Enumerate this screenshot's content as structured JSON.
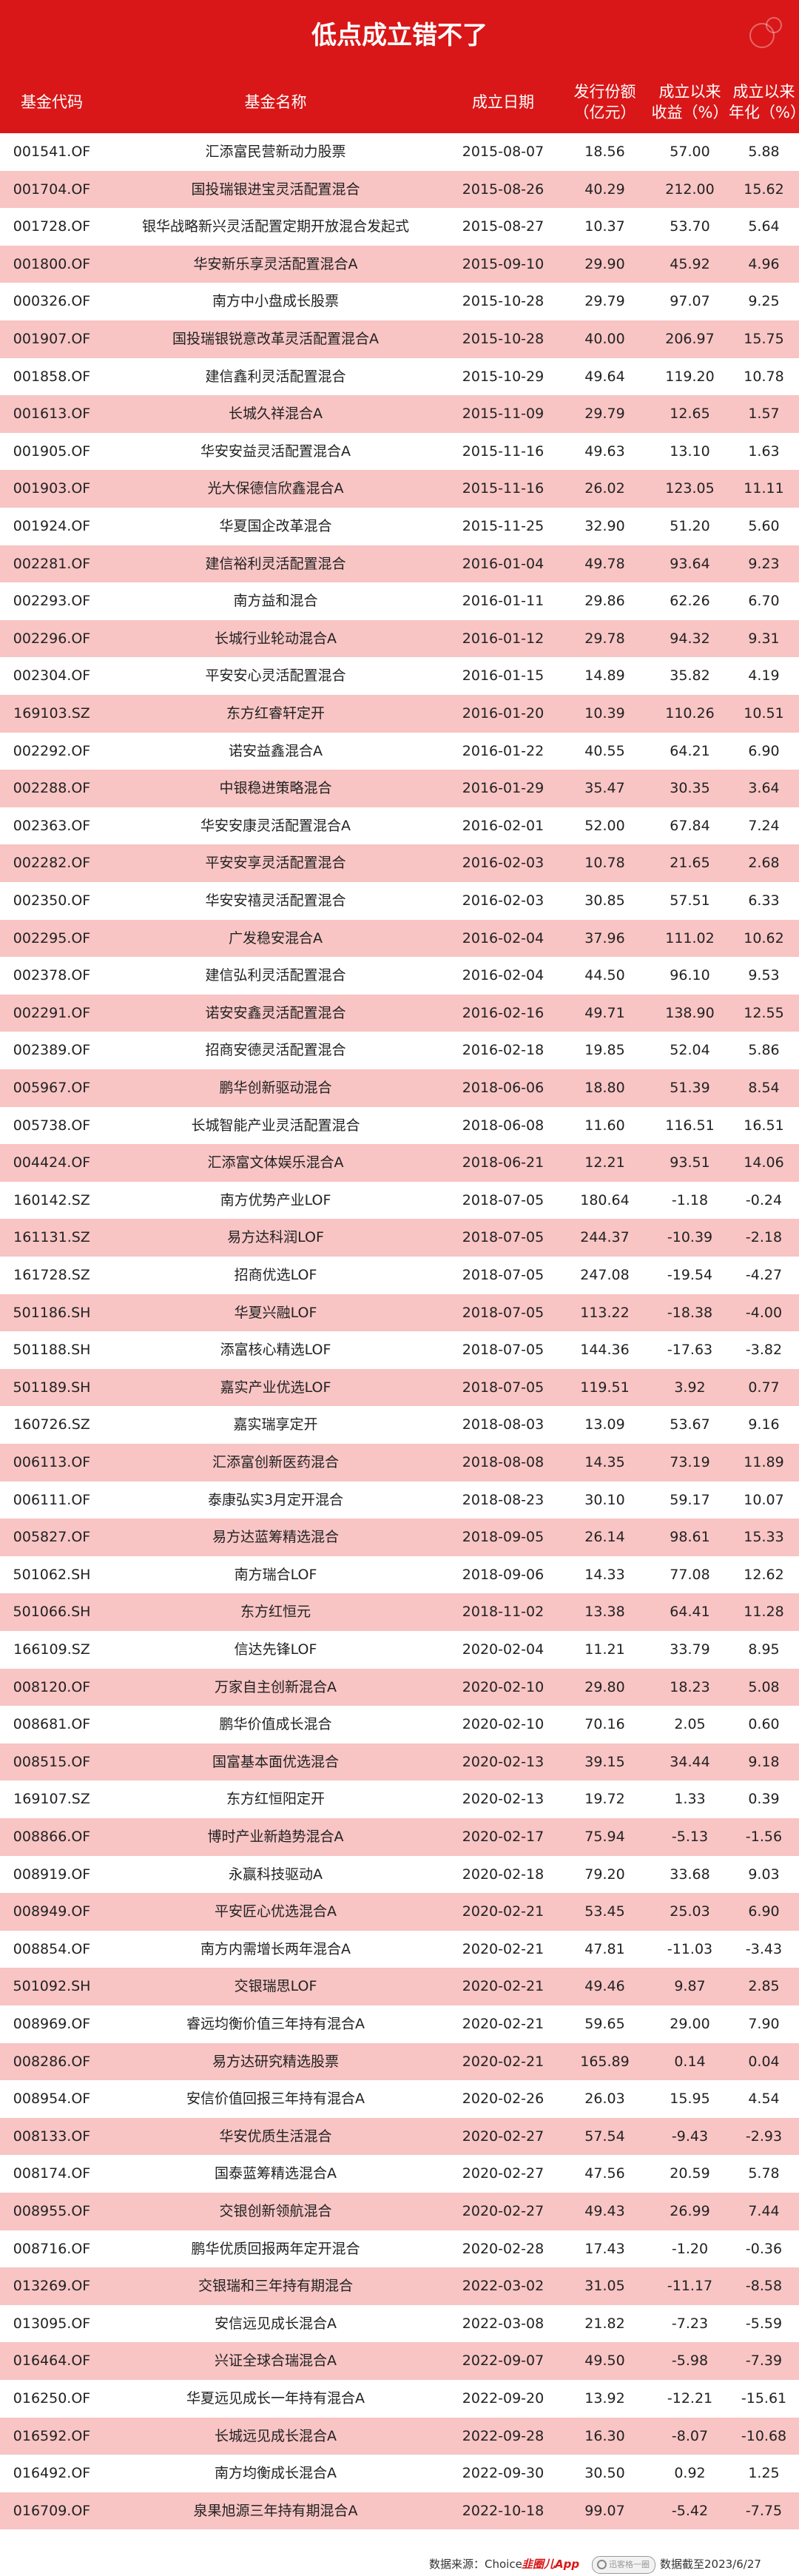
{
  "title": "低点成立错不了",
  "columns": [
    "基金代码",
    "基金名称",
    "成立日期",
    "发行份额\n（亿元）",
    "成立以来\n收益（%）",
    "成立以来\n年化（%）"
  ],
  "rows": [
    [
      "001541.OF",
      "汇添富民营新动力股票",
      "2015-08-07",
      "18.56",
      "57.00",
      "5.88"
    ],
    [
      "001704.OF",
      "国投瑞银进宝灵活配置混合",
      "2015-08-26",
      "40.29",
      "212.00",
      "15.62"
    ],
    [
      "001728.OF",
      "银华战略新兴灵活配置定期开放混合发起式",
      "2015-08-27",
      "10.37",
      "53.70",
      "5.64"
    ],
    [
      "001800.OF",
      "华安新乐享灵活配置混合A",
      "2015-09-10",
      "29.90",
      "45.92",
      "4.96"
    ],
    [
      "000326.OF",
      "南方中小盘成长股票",
      "2015-10-28",
      "29.79",
      "97.07",
      "9.25"
    ],
    [
      "001907.OF",
      "国投瑞银锐意改革灵活配置混合A",
      "2015-10-28",
      "40.00",
      "206.97",
      "15.75"
    ],
    [
      "001858.OF",
      "建信鑫利灵活配置混合",
      "2015-10-29",
      "49.64",
      "119.20",
      "10.78"
    ],
    [
      "001613.OF",
      "长城久祥混合A",
      "2015-11-09",
      "29.79",
      "12.65",
      "1.57"
    ],
    [
      "001905.OF",
      "华安安益灵活配置混合A",
      "2015-11-16",
      "49.63",
      "13.10",
      "1.63"
    ],
    [
      "001903.OF",
      "光大保德信欣鑫混合A",
      "2015-11-16",
      "26.02",
      "123.05",
      "11.11"
    ],
    [
      "001924.OF",
      "华夏国企改革混合",
      "2015-11-25",
      "32.90",
      "51.20",
      "5.60"
    ],
    [
      "002281.OF",
      "建信裕利灵活配置混合",
      "2016-01-04",
      "49.78",
      "93.64",
      "9.23"
    ],
    [
      "002293.OF",
      "南方益和混合",
      "2016-01-11",
      "29.86",
      "62.26",
      "6.70"
    ],
    [
      "002296.OF",
      "长城行业轮动混合A",
      "2016-01-12",
      "29.78",
      "94.32",
      "9.31"
    ],
    [
      "002304.OF",
      "平安安心灵活配置混合",
      "2016-01-15",
      "14.89",
      "35.82",
      "4.19"
    ],
    [
      "169103.SZ",
      "东方红睿轩定开",
      "2016-01-20",
      "10.39",
      "110.26",
      "10.51"
    ],
    [
      "002292.OF",
      "诺安益鑫混合A",
      "2016-01-22",
      "40.55",
      "64.21",
      "6.90"
    ],
    [
      "002288.OF",
      "中银稳进策略混合",
      "2016-01-29",
      "35.47",
      "30.35",
      "3.64"
    ],
    [
      "002363.OF",
      "华安安康灵活配置混合A",
      "2016-02-01",
      "52.00",
      "67.84",
      "7.24"
    ],
    [
      "002282.OF",
      "平安安享灵活配置混合",
      "2016-02-03",
      "10.78",
      "21.65",
      "2.68"
    ],
    [
      "002350.OF",
      "华安安禧灵活配置混合",
      "2016-02-03",
      "30.85",
      "57.51",
      "6.33"
    ],
    [
      "002295.OF",
      "广发稳安混合A",
      "2016-02-04",
      "37.96",
      "111.02",
      "10.62"
    ],
    [
      "002378.OF",
      "建信弘利灵活配置混合",
      "2016-02-04",
      "44.50",
      "96.10",
      "9.53"
    ],
    [
      "002291.OF",
      "诺安安鑫灵活配置混合",
      "2016-02-16",
      "49.71",
      "138.90",
      "12.55"
    ],
    [
      "002389.OF",
      "招商安德灵活配置混合",
      "2016-02-18",
      "19.85",
      "52.04",
      "5.86"
    ],
    [
      "005967.OF",
      "鹏华创新驱动混合",
      "2018-06-06",
      "18.80",
      "51.39",
      "8.54"
    ],
    [
      "005738.OF",
      "长城智能产业灵活配置混合",
      "2018-06-08",
      "11.60",
      "116.51",
      "16.51"
    ],
    [
      "004424.OF",
      "汇添富文体娱乐混合A",
      "2018-06-21",
      "12.21",
      "93.51",
      "14.06"
    ],
    [
      "160142.SZ",
      "南方优势产业LOF",
      "2018-07-05",
      "180.64",
      "-1.18",
      "-0.24"
    ],
    [
      "161131.SZ",
      "易方达科润LOF",
      "2018-07-05",
      "244.37",
      "-10.39",
      "-2.18"
    ],
    [
      "161728.SZ",
      "招商优选LOF",
      "2018-07-05",
      "247.08",
      "-19.54",
      "-4.27"
    ],
    [
      "501186.SH",
      "华夏兴融LOF",
      "2018-07-05",
      "113.22",
      "-18.38",
      "-4.00"
    ],
    [
      "501188.SH",
      "添富核心精选LOF",
      "2018-07-05",
      "144.36",
      "-17.63",
      "-3.82"
    ],
    [
      "501189.SH",
      "嘉实产业优选LOF",
      "2018-07-05",
      "119.51",
      "3.92",
      "0.77"
    ],
    [
      "160726.SZ",
      "嘉实瑞享定开",
      "2018-08-03",
      "13.09",
      "53.67",
      "9.16"
    ],
    [
      "006113.OF",
      "汇添富创新医药混合",
      "2018-08-08",
      "14.35",
      "73.19",
      "11.89"
    ],
    [
      "006111.OF",
      "泰康弘实3月定开混合",
      "2018-08-23",
      "30.10",
      "59.17",
      "10.07"
    ],
    [
      "005827.OF",
      "易方达蓝筹精选混合",
      "2018-09-05",
      "26.14",
      "98.61",
      "15.33"
    ],
    [
      "501062.SH",
      "南方瑞合LOF",
      "2018-09-06",
      "14.33",
      "77.08",
      "12.62"
    ],
    [
      "501066.SH",
      "东方红恒元",
      "2018-11-02",
      "13.38",
      "64.41",
      "11.28"
    ],
    [
      "166109.SZ",
      "信达先锋LOF",
      "2020-02-04",
      "11.21",
      "33.79",
      "8.95"
    ],
    [
      "008120.OF",
      "万家自主创新混合A",
      "2020-02-10",
      "29.80",
      "18.23",
      "5.08"
    ],
    [
      "008681.OF",
      "鹏华价值成长混合",
      "2020-02-10",
      "70.16",
      "2.05",
      "0.60"
    ],
    [
      "008515.OF",
      "国富基本面优选混合",
      "2020-02-13",
      "39.15",
      "34.44",
      "9.18"
    ],
    [
      "169107.SZ",
      "东方红恒阳定开",
      "2020-02-13",
      "19.72",
      "1.33",
      "0.39"
    ],
    [
      "008866.OF",
      "博时产业新趋势混合A",
      "2020-02-17",
      "75.94",
      "-5.13",
      "-1.56"
    ],
    [
      "008919.OF",
      "永赢科技驱动A",
      "2020-02-18",
      "79.20",
      "33.68",
      "9.03"
    ],
    [
      "008949.OF",
      "平安匠心优选混合A",
      "2020-02-21",
      "53.45",
      "25.03",
      "6.90"
    ],
    [
      "008854.OF",
      "南方内需增长两年混合A",
      "2020-02-21",
      "47.81",
      "-11.03",
      "-3.43"
    ],
    [
      "501092.SH",
      "交银瑞思LOF",
      "2020-02-21",
      "49.46",
      "9.87",
      "2.85"
    ],
    [
      "008969.OF",
      "睿远均衡价值三年持有混合A",
      "2020-02-21",
      "59.65",
      "29.00",
      "7.90"
    ],
    [
      "008286.OF",
      "易方达研究精选股票",
      "2020-02-21",
      "165.89",
      "0.14",
      "0.04"
    ],
    [
      "008954.OF",
      "安信价值回报三年持有混合A",
      "2020-02-26",
      "26.03",
      "15.95",
      "4.54"
    ],
    [
      "008133.OF",
      "华安优质生活混合",
      "2020-02-27",
      "57.54",
      "-9.43",
      "-2.93"
    ],
    [
      "008174.OF",
      "国泰蓝筹精选混合A",
      "2020-02-27",
      "47.56",
      "20.59",
      "5.78"
    ],
    [
      "008955.OF",
      "交银创新领航混合",
      "2020-02-27",
      "49.43",
      "26.99",
      "7.44"
    ],
    [
      "008716.OF",
      "鹏华优质回报两年定开混合",
      "2020-02-28",
      "17.43",
      "-1.20",
      "-0.36"
    ],
    [
      "013269.OF",
      "交银瑞和三年持有期混合",
      "2022-03-02",
      "31.05",
      "-11.17",
      "-8.58"
    ],
    [
      "013095.OF",
      "安信远见成长混合A",
      "2022-03-08",
      "21.82",
      "-7.23",
      "-5.59"
    ],
    [
      "016464.OF",
      "兴证全球合瑞混合A",
      "2022-09-07",
      "49.50",
      "-5.98",
      "-7.39"
    ],
    [
      "016250.OF",
      "华夏远见成长一年持有混合A",
      "2022-09-20",
      "13.92",
      "-12.21",
      "-15.61"
    ],
    [
      "016592.OF",
      "长城远见成长混合A",
      "2022-09-28",
      "16.30",
      "-8.07",
      "-10.68"
    ],
    [
      "016492.OF",
      "南方均衡成长混合A",
      "2022-09-30",
      "30.50",
      "0.92",
      "1.25"
    ],
    [
      "016709.OF",
      "泉果旭源三年持有期混合A",
      "2022-10-18",
      "99.07",
      "-5.42",
      "-7.75"
    ]
  ],
  "footer": {
    "source": "数据来源：Choice",
    "brand": "韭圈儿App",
    "search_placeholder": "迅客格一圈",
    "cutoff": "数据截至2023/6/27"
  },
  "colors": {
    "accent": "#d91718",
    "row_alt": "#f8c4c4"
  }
}
